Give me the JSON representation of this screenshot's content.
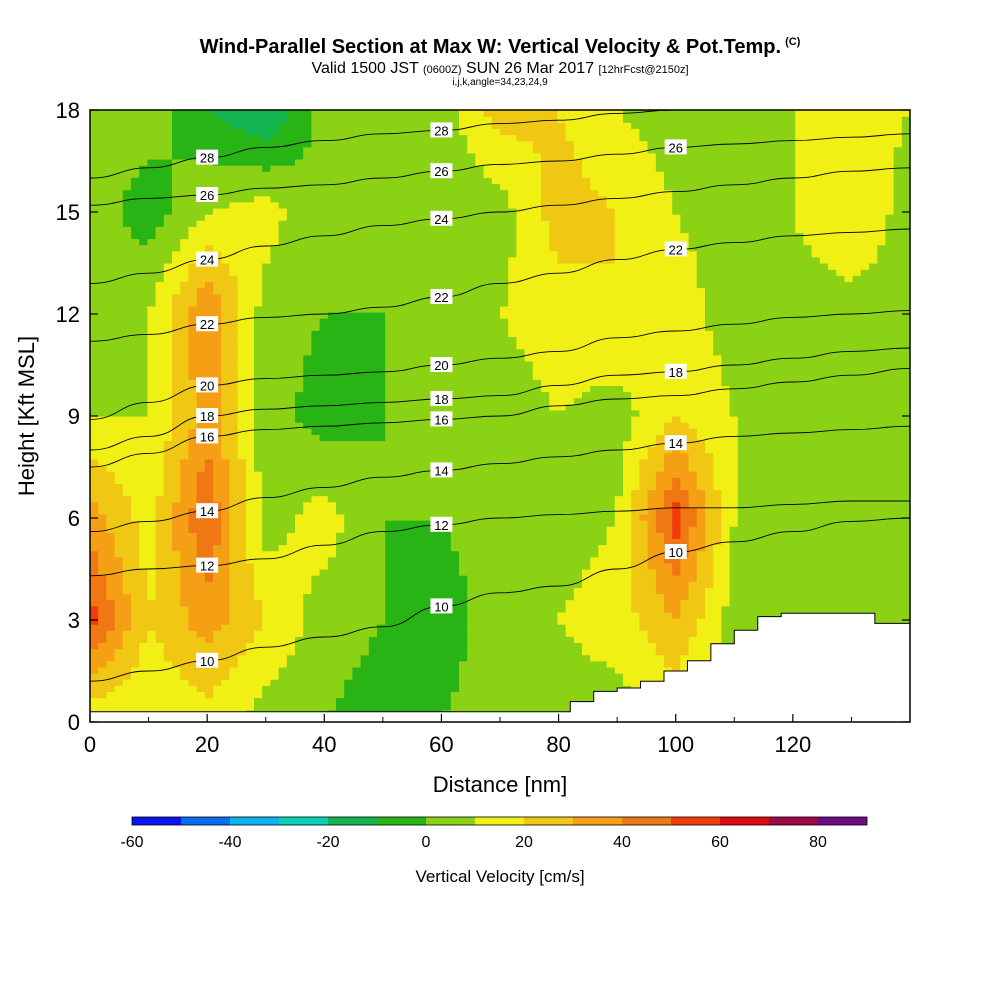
{
  "header": {
    "title": "Wind-Parallel Section at Max W: Vertical Velocity & Pot.Temp.",
    "title_mark": "(C)",
    "valid_prefix": "Valid 1500 JST",
    "valid_utc": "(0600Z)",
    "valid_date": "SUN 26 Mar 2017",
    "forecast": "[12hrFcst@2150z]",
    "indices": "i,j,k,angle=34,23,24,9"
  },
  "chart_data": {
    "type": "heatmap",
    "xlabel": "Distance [nm]",
    "ylabel": "Height [Kft MSL]",
    "xlim": [
      0,
      140
    ],
    "ylim": [
      0,
      18
    ],
    "xticks": [
      0,
      20,
      40,
      60,
      80,
      100,
      120
    ],
    "yticks": [
      0,
      3,
      6,
      9,
      12,
      15,
      18
    ],
    "colorbar": {
      "label": "Vertical Velocity [cm/s]",
      "levels": [
        -60,
        -50,
        -40,
        -30,
        -20,
        -10,
        0,
        10,
        20,
        30,
        40,
        50,
        60,
        70,
        80,
        90
      ],
      "tick_labels": [
        "-60",
        "-40",
        "-20",
        "0",
        "20",
        "40",
        "60",
        "80"
      ],
      "tick_values": [
        -60,
        -40,
        -20,
        0,
        20,
        40,
        60,
        80
      ],
      "colors": [
        "#0a14f0",
        "#0a6ef0",
        "#0ab4f0",
        "#0ad2b4",
        "#14b450",
        "#28b414",
        "#8cd214",
        "#f0f014",
        "#f0c814",
        "#f5a014",
        "#f07814",
        "#f03c0a",
        "#dc0a14",
        "#a00a46",
        "#6e0a82"
      ]
    },
    "velocity_field": {
      "x": [
        0,
        10,
        20,
        30,
        40,
        50,
        60,
        70,
        80,
        90,
        100,
        110,
        120,
        130,
        140
      ],
      "y": [
        0,
        3,
        6,
        9,
        12,
        15,
        18
      ],
      "values_cm_s": [
        [
          10,
          10,
          15,
          5,
          0,
          -5,
          0,
          5,
          5,
          5,
          10,
          0,
          0,
          0,
          0
        ],
        [
          55,
          20,
          35,
          20,
          5,
          0,
          -5,
          5,
          10,
          15,
          30,
          5,
          5,
          5,
          5
        ],
        [
          35,
          15,
          50,
          5,
          15,
          0,
          0,
          5,
          5,
          10,
          55,
          10,
          5,
          5,
          5
        ],
        [
          10,
          10,
          35,
          5,
          -5,
          0,
          0,
          5,
          10,
          5,
          20,
          10,
          5,
          0,
          5
        ],
        [
          5,
          10,
          40,
          5,
          0,
          0,
          0,
          10,
          15,
          20,
          15,
          5,
          5,
          5,
          5
        ],
        [
          5,
          -5,
          10,
          15,
          0,
          5,
          0,
          5,
          25,
          20,
          10,
          5,
          10,
          20,
          5
        ],
        [
          5,
          5,
          -10,
          -20,
          5,
          10,
          5,
          25,
          20,
          10,
          5,
          5,
          10,
          15,
          10
        ]
      ]
    },
    "theta_contours": [
      {
        "label": "10",
        "y": [
          1.2,
          1.5,
          1.8,
          2.2,
          2.5,
          2.8,
          3.4,
          3.8,
          4.0,
          4.5,
          5.0,
          5.3,
          5.6,
          5.9,
          6.0
        ]
      },
      {
        "label": "12",
        "y": [
          4.3,
          4.5,
          4.6,
          4.8,
          5.2,
          5.6,
          5.8,
          6.0,
          6.1,
          6.2,
          6.3,
          6.3,
          6.4,
          6.5,
          6.5
        ]
      },
      {
        "label": "14",
        "y": [
          5.6,
          5.9,
          6.2,
          6.6,
          6.9,
          7.2,
          7.4,
          7.6,
          7.8,
          8.0,
          8.2,
          8.4,
          8.5,
          8.6,
          8.7
        ]
      },
      {
        "label": "16",
        "y": [
          7.5,
          7.9,
          8.4,
          8.6,
          8.7,
          8.8,
          8.9,
          9.0,
          9.3,
          9.5,
          9.6,
          9.8,
          10.0,
          10.2,
          10.4
        ]
      },
      {
        "label": "18",
        "y": [
          8.0,
          8.4,
          9.0,
          9.2,
          9.3,
          9.4,
          9.5,
          9.6,
          9.9,
          10.2,
          10.3,
          10.5,
          10.7,
          10.9,
          11.0
        ]
      },
      {
        "label": "20",
        "y": [
          8.9,
          9.4,
          9.9,
          10.1,
          10.2,
          10.3,
          10.5,
          10.7,
          10.9,
          11.3,
          11.5,
          11.7,
          11.9,
          12.0,
          12.1
        ]
      },
      {
        "label": "22",
        "y": [
          11.2,
          11.4,
          11.7,
          11.9,
          12.0,
          12.2,
          12.5,
          12.9,
          13.2,
          13.6,
          13.9,
          14.1,
          14.3,
          14.4,
          14.5
        ]
      },
      {
        "label": "24",
        "y": [
          12.9,
          13.2,
          13.6,
          14.0,
          14.3,
          14.6,
          14.8,
          15.0,
          15.2,
          15.4,
          15.6,
          15.8,
          16.0,
          16.2,
          16.3
        ]
      },
      {
        "label": "26",
        "y": [
          15.2,
          15.4,
          15.5,
          15.7,
          15.8,
          16.0,
          16.2,
          16.4,
          16.5,
          16.7,
          16.9,
          17.0,
          17.1,
          17.2,
          17.3
        ]
      },
      {
        "label": "28",
        "y": [
          16.0,
          16.3,
          16.6,
          16.9,
          17.1,
          17.3,
          17.4,
          17.6,
          17.7,
          17.9,
          18.0,
          18.0,
          18.0,
          18.0,
          18.0
        ]
      }
    ],
    "terrain": {
      "x": [
        0,
        80,
        82,
        86,
        90,
        94,
        98,
        102,
        106,
        110,
        114,
        118,
        122,
        126,
        130,
        134,
        138,
        140
      ],
      "y": [
        0.3,
        0.3,
        0.6,
        0.9,
        1.0,
        1.2,
        1.5,
        1.8,
        2.3,
        2.7,
        3.1,
        3.2,
        3.2,
        3.2,
        3.2,
        2.9,
        2.9,
        2.9
      ]
    }
  }
}
